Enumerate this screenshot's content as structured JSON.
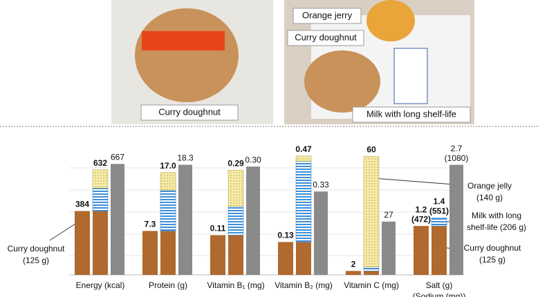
{
  "photos": [
    {
      "captions": [
        "Curry doughnut"
      ]
    },
    {
      "captions": [
        "Orange jerry",
        "Curry doughnut",
        "Milk with long shelf-life"
      ]
    }
  ],
  "chart_data": {
    "type": "bar",
    "colors": {
      "doughnut": "#b0692e",
      "milk": "#3d8ed8",
      "jelly": "#f7eca6",
      "reference": "#8a8a8a"
    },
    "groups": [
      {
        "label": [
          "Energy (kcal)"
        ],
        "doughnut": 384,
        "milk": 138,
        "jelly": 110,
        "total": 632,
        "reference": 667,
        "ylim": [
          0,
          760
        ]
      },
      {
        "label": [
          "Protein (g)"
        ],
        "doughnut": 7.3,
        "milk": 6.8,
        "jelly": 2.9,
        "total": 17.0,
        "total_label": "17.0",
        "reference": 18.3,
        "ylim": [
          0,
          21
        ]
      },
      {
        "label": [
          "Vitamin B₁ (mg)"
        ],
        "doughnut": 0.11,
        "milk": 0.08,
        "jelly": 0.1,
        "total": 0.29,
        "reference": 0.3,
        "reference_label": "0.30",
        "ylim": [
          0,
          0.35
        ]
      },
      {
        "label": [
          "Vitamin B₂ (mg)"
        ],
        "doughnut": 0.13,
        "milk": 0.32,
        "jelly": 0.02,
        "total": 0.47,
        "reference": 0.33,
        "ylim": [
          0,
          0.5
        ]
      },
      {
        "label": [
          "Vitamin C (mg)"
        ],
        "doughnut": 2,
        "milk": 2,
        "jelly": 56,
        "total": 60,
        "reference": 27,
        "ylim": [
          0,
          64
        ]
      },
      {
        "label": [
          "Salt (g)",
          "(Sodium (mg))"
        ],
        "doughnut": 1.2,
        "doughnut_sodium": 472,
        "doughnut_sodium_label": "(472)",
        "milk": 0.2,
        "jelly": 0,
        "total": 1.4,
        "total_sodium": 551,
        "total_sodium_label": "(551)",
        "reference": 2.7,
        "reference_sodium": 1080,
        "reference_sodium_label": "(1080)",
        "ylim": [
          0,
          3.1
        ]
      }
    ],
    "annotations": [
      {
        "lines": [
          "Curry doughnut",
          "(125 g)"
        ]
      },
      {
        "lines": [
          "Orange jelly",
          "(140 g)"
        ]
      },
      {
        "lines": [
          "Milk with long",
          "shelf-life (206 g)"
        ]
      },
      {
        "lines": [
          "Curry doughnut",
          "(125 g)"
        ]
      }
    ]
  }
}
